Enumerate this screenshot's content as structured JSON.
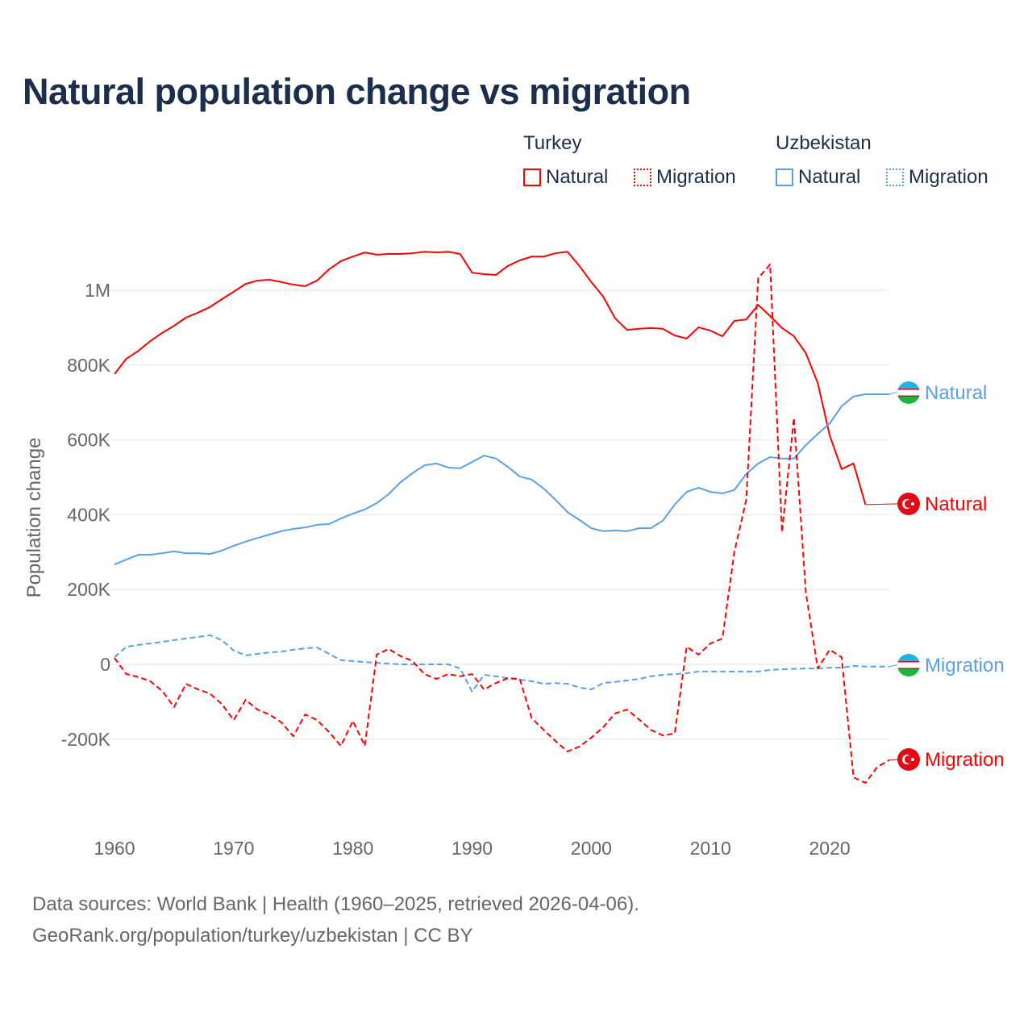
{
  "title": "Natural population change vs migration",
  "legend": {
    "groups": [
      {
        "label": "Turkey",
        "items": [
          {
            "label": "Natural",
            "style": "solid",
            "color": "#ff0000"
          },
          {
            "label": "Migration",
            "style": "dotted",
            "color": "#ff0000"
          }
        ]
      },
      {
        "label": "Uzbekistan",
        "items": [
          {
            "label": "Natural",
            "style": "solid",
            "color": "#5aa0e6"
          },
          {
            "label": "Migration",
            "style": "dotted",
            "color": "#5aa0e6"
          }
        ]
      }
    ]
  },
  "footer": {
    "line1": "Data sources: World Bank | Health (1960–2025, retrieved 2026-04-06).",
    "line2": "GeoRank.org/population/turkey/uzbekistan | CC BY"
  },
  "chart_data": {
    "type": "line",
    "title": "Natural population change vs migration",
    "xlabel": "",
    "ylabel": "Population change",
    "xlim": [
      1960,
      2025
    ],
    "ylim": [
      -400000,
      1150000
    ],
    "grid": true,
    "legend_position": "top-right",
    "x_ticks": [
      {
        "v": 1960,
        "label": "1960"
      },
      {
        "v": 1970,
        "label": "1970"
      },
      {
        "v": 1980,
        "label": "1980"
      },
      {
        "v": 1990,
        "label": "1990"
      },
      {
        "v": 2000,
        "label": "2000"
      },
      {
        "v": 2010,
        "label": "2010"
      },
      {
        "v": 2020,
        "label": "2020"
      }
    ],
    "y_ticks": [
      {
        "v": -200000,
        "label": "-200K"
      },
      {
        "v": 0,
        "label": "0"
      },
      {
        "v": 200000,
        "label": "200K"
      },
      {
        "v": 400000,
        "label": "400K"
      },
      {
        "v": 600000,
        "label": "600K"
      },
      {
        "v": 800000,
        "label": "800K"
      },
      {
        "v": 1000000,
        "label": "1M"
      }
    ],
    "x_start": 1960,
    "units": "thousands",
    "series": [
      {
        "name": "Turkey Natural",
        "end_label": "Natural",
        "color": "#ff0000",
        "dash": false,
        "flag": "turkey",
        "values": [
          776,
          817,
          838,
          864,
          886,
          905,
          927,
          940,
          955,
          976,
          996,
          1017,
          1026,
          1028,
          1022,
          1015,
          1011,
          1026,
          1056,
          1078,
          1090,
          1101,
          1095,
          1097,
          1097,
          1099,
          1103,
          1101,
          1103,
          1097,
          1047,
          1043,
          1041,
          1065,
          1080,
          1090,
          1090,
          1099,
          1103,
          1065,
          1022,
          983,
          925,
          894,
          897,
          899,
          897,
          879,
          871,
          901,
          892,
          877,
          918,
          922,
          961,
          931,
          899,
          877,
          832,
          752,
          612,
          522,
          537,
          427,
          427,
          427
        ]
      },
      {
        "name": "Uzbekistan Natural",
        "end_label": "Natural",
        "color": "#5aa0e6",
        "dash": false,
        "flag": "uzbekistan",
        "values": [
          267,
          280,
          293,
          293,
          297,
          302,
          297,
          297,
          295,
          304,
          317,
          328,
          338,
          347,
          356,
          362,
          366,
          373,
          375,
          390,
          403,
          414,
          431,
          455,
          487,
          511,
          532,
          537,
          526,
          524,
          541,
          558,
          550,
          528,
          502,
          494,
          470,
          440,
          407,
          386,
          364,
          356,
          358,
          356,
          364,
          364,
          384,
          427,
          461,
          472,
          461,
          457,
          466,
          509,
          537,
          554,
          550,
          550,
          586,
          616,
          644,
          690,
          716,
          722,
          722,
          722
        ]
      },
      {
        "name": "Uzbekistan Migration",
        "end_label": "Migration",
        "color": "#5aa0e6",
        "dash": true,
        "flag": "uzbekistan",
        "values": [
          19,
          47,
          52,
          56,
          60,
          65,
          69,
          73,
          78,
          65,
          37,
          24,
          28,
          32,
          34,
          39,
          43,
          45,
          28,
          11,
          9,
          6,
          4,
          2,
          0,
          0,
          0,
          0,
          0,
          -11,
          -73,
          -28,
          -32,
          -37,
          -41,
          -45,
          -52,
          -50,
          -52,
          -62,
          -67,
          -50,
          -47,
          -43,
          -39,
          -32,
          -28,
          -26,
          -24,
          -19,
          -19,
          -19,
          -19,
          -19,
          -19,
          -15,
          -13,
          -12,
          -11,
          -11,
          -9,
          -9,
          -4,
          -6,
          -6,
          -6
        ]
      },
      {
        "name": "Turkey Migration",
        "end_label": "Migration",
        "color": "#ff0000",
        "dash": true,
        "flag": "turkey",
        "values": [
          17,
          -26,
          -34,
          -45,
          -71,
          -114,
          -52,
          -67,
          -78,
          -106,
          -149,
          -95,
          -121,
          -134,
          -155,
          -192,
          -134,
          -149,
          -181,
          -218,
          -151,
          -218,
          26,
          41,
          22,
          9,
          -26,
          -39,
          -26,
          -32,
          -26,
          -67,
          -50,
          -37,
          -39,
          -144,
          -175,
          -205,
          -233,
          -220,
          -196,
          -168,
          -131,
          -121,
          -147,
          -175,
          -190,
          -185,
          47,
          26,
          56,
          69,
          300,
          440,
          1032,
          1069,
          353,
          659,
          192,
          -11,
          39,
          19,
          -302,
          -317,
          -274,
          -256
        ]
      }
    ]
  }
}
